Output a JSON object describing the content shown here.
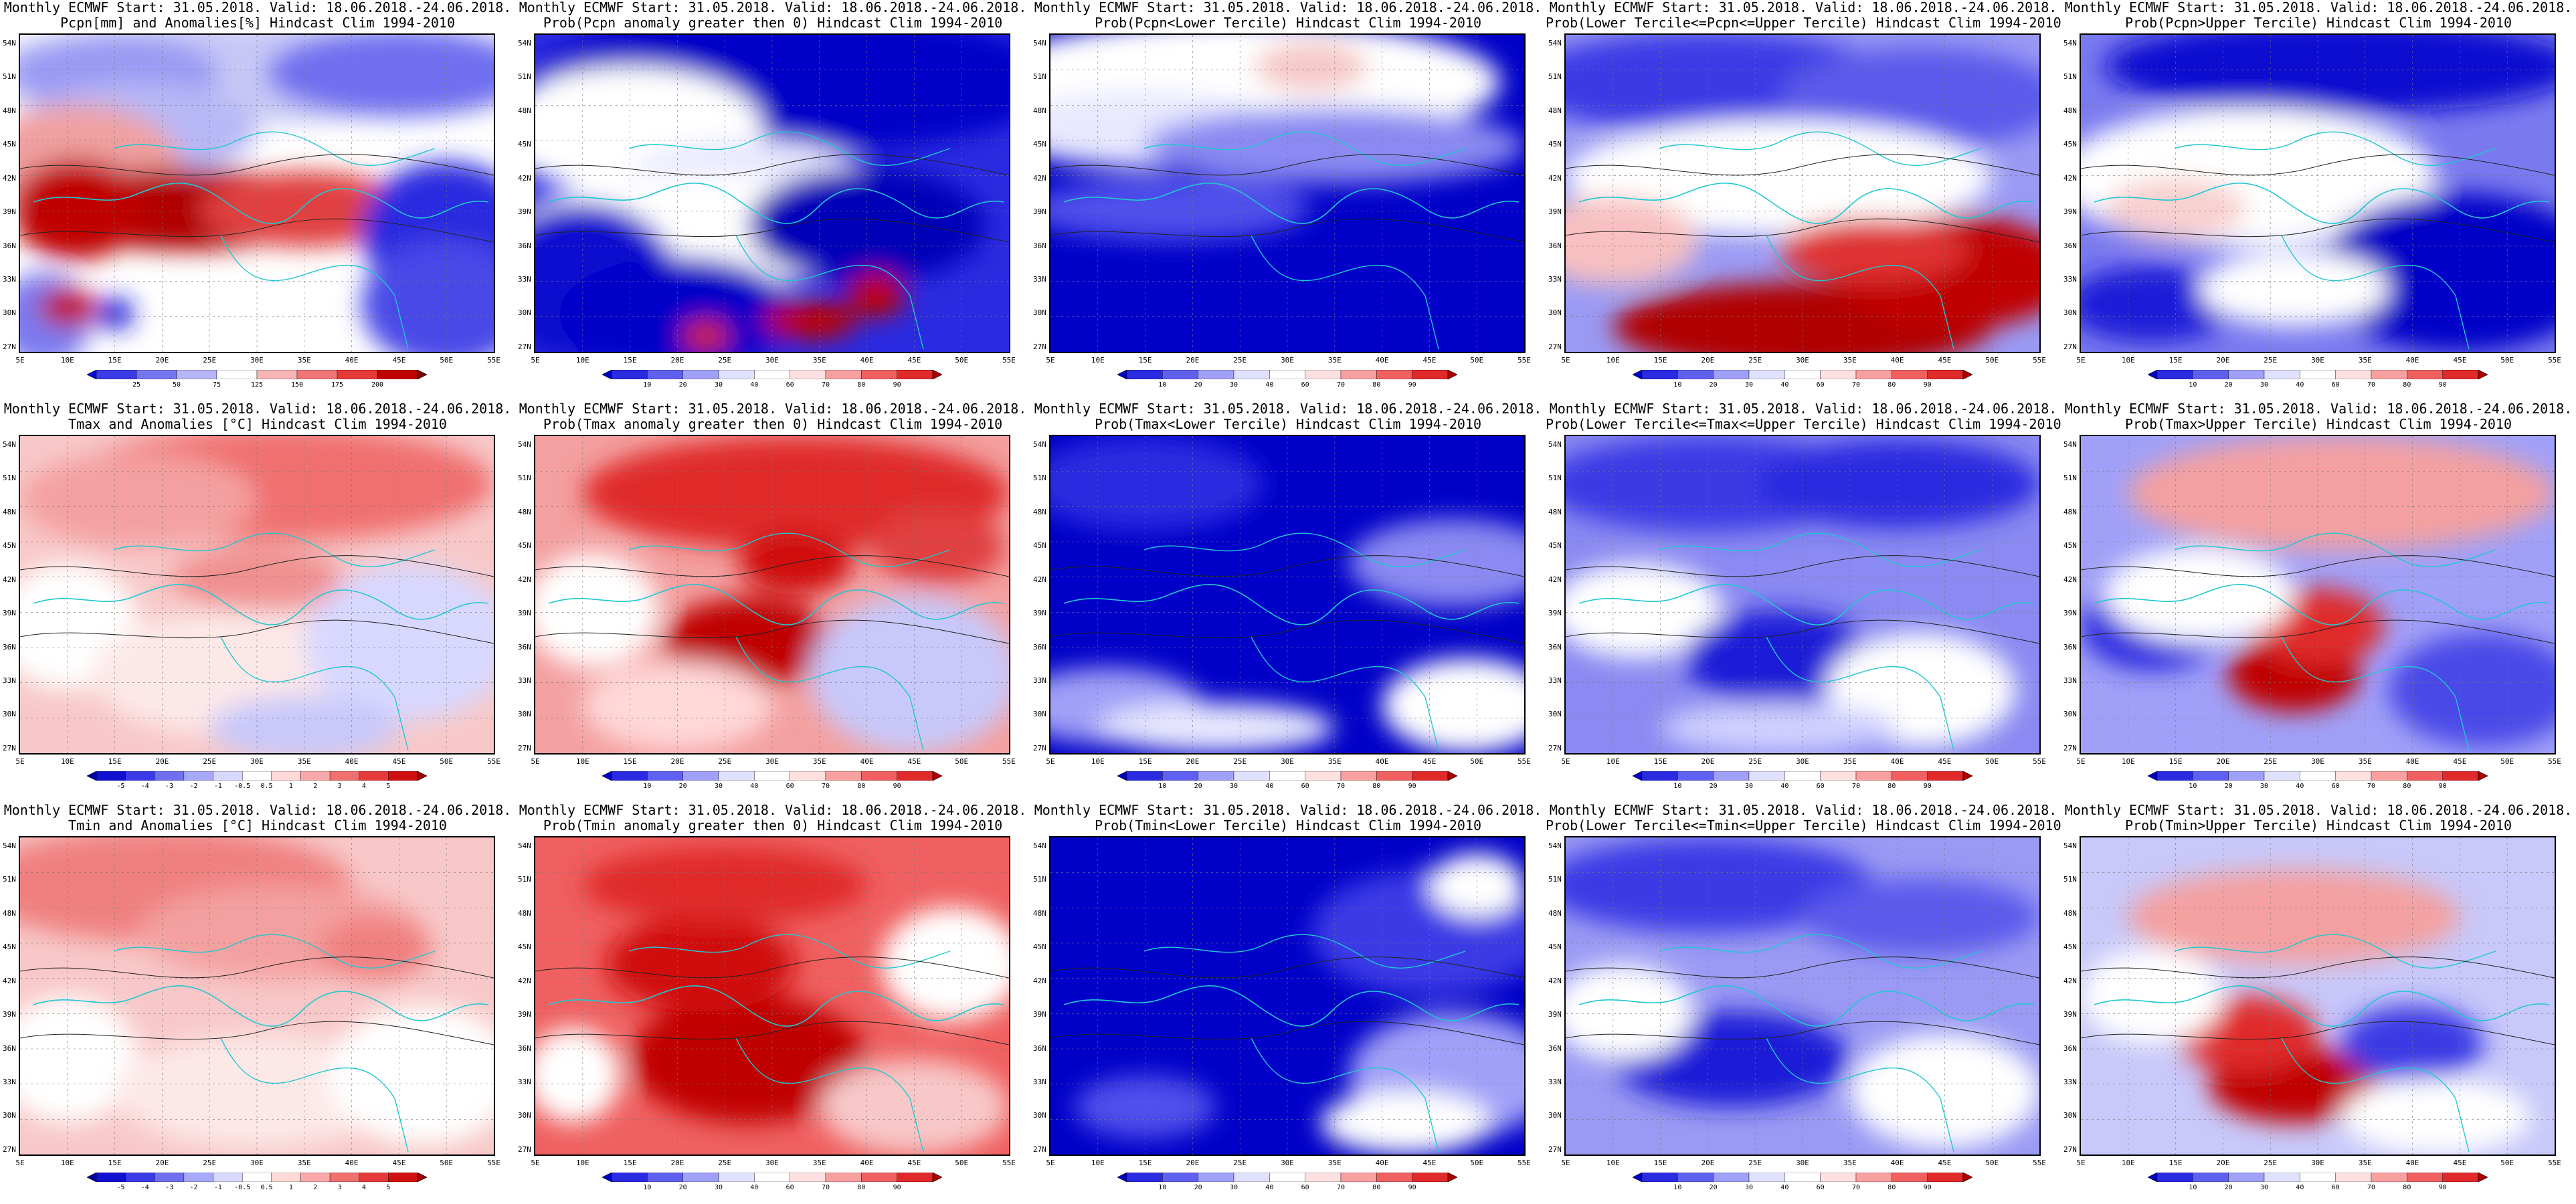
{
  "lat_labels": [
    "54N",
    "51N",
    "48N",
    "45N",
    "42N",
    "39N",
    "36N",
    "33N",
    "30N",
    "27N"
  ],
  "lon_labels": [
    "5E",
    "10E",
    "15E",
    "20E",
    "25E",
    "30E",
    "35E",
    "40E",
    "45E",
    "50E",
    "55E"
  ],
  "colorbars": {
    "pcpn_anom": {
      "ticks": [
        "25",
        "50",
        "75",
        "125",
        "150",
        "175",
        "200"
      ],
      "colors": [
        "#0b0bd0",
        "#3a3ae6",
        "#7575f0",
        "#b5b5f8",
        "#ffffff",
        "#f8b5b5",
        "#f07575",
        "#e63a3a",
        "#c00000",
        "#7a0000"
      ]
    },
    "prob": {
      "ticks": [
        "10",
        "20",
        "30",
        "40",
        "60",
        "70",
        "80",
        "90"
      ],
      "colors": [
        "#0000c8",
        "#2a2ae0",
        "#6060f0",
        "#a0a0f8",
        "#e0e0ff",
        "#ffffff",
        "#ffe0e0",
        "#f8a0a0",
        "#f06060",
        "#e02a2a",
        "#b00000"
      ]
    },
    "temp_anom": {
      "ticks": [
        "-5",
        "-4",
        "-3",
        "-2",
        "-1",
        "-0.5",
        "0.5",
        "1",
        "2",
        "3",
        "4",
        "5"
      ],
      "colors": [
        "#0000a0",
        "#1010d0",
        "#3a3ae6",
        "#6f6ff0",
        "#a8a8f8",
        "#d8d8ff",
        "#ffffff",
        "#ffd8d8",
        "#f8a8a8",
        "#f06f6f",
        "#e63a3a",
        "#d01010",
        "#a00000"
      ]
    }
  },
  "panels": [
    {
      "line1": "Monthly ECMWF Start: 31.05.2018. Valid: 18.06.2018.-24.06.2018.",
      "line2": "Pcpn[mm] and Anomalies[%] Hindcast Clim 1994-2010",
      "bar": "pcpn_anom",
      "base": "#ffffff",
      "blobs": [
        [
          "#c8c8f6",
          0.45,
          0.12,
          0.55,
          0.16
        ],
        [
          "#6f6ff0",
          0.8,
          0.12,
          0.28,
          0.14
        ],
        [
          "#9a9af4",
          0.2,
          0.12,
          0.22,
          0.12
        ],
        [
          "#b8b8f6",
          0.25,
          0.3,
          0.25,
          0.15
        ],
        [
          "#f0a0a0",
          0.12,
          0.42,
          0.22,
          0.2
        ],
        [
          "#b00000",
          0.35,
          0.55,
          0.3,
          0.13
        ],
        [
          "#c00000",
          0.12,
          0.55,
          0.14,
          0.16
        ],
        [
          "#e04040",
          0.6,
          0.55,
          0.22,
          0.12
        ],
        [
          "#2a2ae0",
          0.9,
          0.62,
          0.18,
          0.22
        ],
        [
          "#4a4ae8",
          0.9,
          0.85,
          0.18,
          0.2
        ],
        [
          "#7a7af0",
          0.05,
          0.9,
          0.1,
          0.15
        ],
        [
          "#c00000",
          0.1,
          0.86,
          0.06,
          0.06
        ],
        [
          "#1e1ed8",
          0.2,
          0.88,
          0.04,
          0.05
        ]
      ]
    },
    {
      "line1": "Monthly ECMWF Start: 31.05.2018. Valid: 18.06.2018.-24.06.2018.",
      "line2": "Prob(Pcpn anomaly greater then 0) Hindcast Clim 1994-2010",
      "bar": "prob",
      "base": "#2a2ae0",
      "blobs": [
        [
          "#0000c8",
          0.55,
          0.15,
          0.55,
          0.22
        ],
        [
          "#ffffff",
          0.2,
          0.3,
          0.28,
          0.2
        ],
        [
          "#e8e8ff",
          0.45,
          0.45,
          0.25,
          0.12
        ],
        [
          "#ffffff",
          0.35,
          0.62,
          0.4,
          0.18
        ],
        [
          "#0a0ad0",
          0.1,
          0.78,
          0.2,
          0.25
        ],
        [
          "#0000c8",
          0.3,
          0.88,
          0.25,
          0.18
        ],
        [
          "#0000b8",
          0.7,
          0.6,
          0.25,
          0.18
        ],
        [
          "#c00000",
          0.58,
          0.9,
          0.1,
          0.06
        ],
        [
          "#c00000",
          0.72,
          0.82,
          0.06,
          0.07
        ],
        [
          "#d02020",
          0.36,
          0.95,
          0.05,
          0.05
        ]
      ]
    },
    {
      "line1": "Monthly ECMWF Start: 31.05.2018. Valid: 18.06.2018.-24.06.2018.",
      "line2": "Prob(Pcpn<Lower Tercile) Hindcast Clim 1994-2010",
      "bar": "prob",
      "base": "#0000c8",
      "blobs": [
        [
          "#ffffff",
          0.4,
          0.15,
          0.55,
          0.2
        ],
        [
          "#f6c8c8",
          0.55,
          0.1,
          0.12,
          0.08
        ],
        [
          "#e8e8ff",
          0.2,
          0.3,
          0.3,
          0.12
        ],
        [
          "#8a8af2",
          0.6,
          0.35,
          0.4,
          0.12
        ],
        [
          "#5050ec",
          0.25,
          0.55,
          0.3,
          0.1
        ]
      ]
    },
    {
      "line1": "Monthly ECMWF Start: 31.05.2018. Valid: 18.06.2018.-24.06.2018.",
      "line2": "Prob(Lower Tercile<=Pcpn<=Upper Tercile) Hindcast Clim 1994-2010",
      "bar": "prob",
      "base": "#9a9af4",
      "blobs": [
        [
          "#3a3ae6",
          0.3,
          0.15,
          0.4,
          0.16
        ],
        [
          "#5a5aec",
          0.75,
          0.2,
          0.3,
          0.16
        ],
        [
          "#ffffff",
          0.45,
          0.45,
          0.45,
          0.18
        ],
        [
          "#f8c0c0",
          0.1,
          0.65,
          0.18,
          0.14
        ],
        [
          "#b00000",
          0.5,
          0.92,
          0.4,
          0.14
        ],
        [
          "#c00000",
          0.82,
          0.75,
          0.25,
          0.18
        ],
        [
          "#e03030",
          0.65,
          0.68,
          0.2,
          0.1
        ]
      ]
    },
    {
      "line1": "Monthly ECMWF Start: 31.05.2018. Valid: 18.06.2018.-24.06.2018.",
      "line2": "Prob(Pcpn>Upper Tercile) Hindcast Clim 1994-2010",
      "bar": "prob",
      "base": "#7a7af0",
      "blobs": [
        [
          "#0a0ad0",
          0.55,
          0.1,
          0.5,
          0.15
        ],
        [
          "#ffffff",
          0.35,
          0.45,
          0.4,
          0.22
        ],
        [
          "#f8d0d0",
          0.2,
          0.55,
          0.15,
          0.1
        ],
        [
          "#0000c8",
          0.8,
          0.75,
          0.3,
          0.25
        ],
        [
          "#1a1ad8",
          0.15,
          0.85,
          0.18,
          0.12
        ],
        [
          "#ffffff",
          0.45,
          0.8,
          0.2,
          0.12
        ]
      ]
    },
    {
      "line1": "Monthly ECMWF Start: 31.05.2018. Valid: 18.06.2018.-24.06.2018.",
      "line2": "Tmax and Anomalies [°C] Hindcast Clim 1994-2010",
      "bar": "temp_anom",
      "base": "#f8c8c8",
      "blobs": [
        [
          "#f07070",
          0.55,
          0.15,
          0.45,
          0.18
        ],
        [
          "#f4a0a0",
          0.25,
          0.2,
          0.25,
          0.15
        ],
        [
          "#ffffff",
          0.1,
          0.6,
          0.15,
          0.2
        ],
        [
          "#fde8e8",
          0.45,
          0.75,
          0.3,
          0.2
        ],
        [
          "#d8d8ff",
          0.82,
          0.65,
          0.22,
          0.25
        ],
        [
          "#c8c8fa",
          0.6,
          0.92,
          0.2,
          0.1
        ],
        [
          "#f09090",
          0.5,
          0.45,
          0.18,
          0.1
        ]
      ]
    },
    {
      "line1": "Monthly ECMWF Start: 31.05.2018. Valid: 18.06.2018.-24.06.2018.",
      "line2": "Prob(Tmax anomaly greater then 0) Hindcast Clim 1994-2010",
      "bar": "prob",
      "base": "#f4a0a0",
      "blobs": [
        [
          "#e02a2a",
          0.55,
          0.18,
          0.45,
          0.18
        ],
        [
          "#c00000",
          0.45,
          0.65,
          0.18,
          0.14
        ],
        [
          "#d01010",
          0.55,
          0.4,
          0.12,
          0.1
        ],
        [
          "#ffffff",
          0.12,
          0.55,
          0.14,
          0.18
        ],
        [
          "#c8c8fa",
          0.8,
          0.75,
          0.22,
          0.25
        ],
        [
          "#ffd8d8",
          0.3,
          0.85,
          0.2,
          0.14
        ],
        [
          "#e04040",
          0.85,
          0.35,
          0.14,
          0.12
        ]
      ]
    },
    {
      "line1": "Monthly ECMWF Start: 31.05.2018. Valid: 18.06.2018.-24.06.2018.",
      "line2": "Prob(Tmax<Lower Tercile) Hindcast Clim 1994-2010",
      "bar": "prob",
      "base": "#0000c8",
      "blobs": [
        [
          "#2a2ae0",
          0.2,
          0.15,
          0.25,
          0.15
        ],
        [
          "#8a8af2",
          0.85,
          0.4,
          0.22,
          0.14
        ],
        [
          "#a0a0f8",
          0.12,
          0.85,
          0.2,
          0.12
        ],
        [
          "#e8e8ff",
          0.35,
          0.92,
          0.25,
          0.08
        ],
        [
          "#ffffff",
          0.88,
          0.85,
          0.18,
          0.15
        ]
      ]
    },
    {
      "line1": "Monthly ECMWF Start: 31.05.2018. Valid: 18.06.2018.-24.06.2018.",
      "line2": "Prob(Lower Tercile<=Tmax<=Upper Tercile) Hindcast Clim 1994-2010",
      "bar": "prob",
      "base": "#8a8af2",
      "blobs": [
        [
          "#3a3ae6",
          0.3,
          0.15,
          0.35,
          0.15
        ],
        [
          "#2a2ae0",
          0.7,
          0.15,
          0.3,
          0.14
        ],
        [
          "#ffffff",
          0.15,
          0.55,
          0.18,
          0.15
        ],
        [
          "#1a1ad8",
          0.45,
          0.7,
          0.2,
          0.15
        ],
        [
          "#ffffff",
          0.75,
          0.8,
          0.2,
          0.18
        ],
        [
          "#d0d0ff",
          0.45,
          0.92,
          0.25,
          0.08
        ]
      ]
    },
    {
      "line1": "Monthly ECMWF Start: 31.05.2018. Valid: 18.06.2018.-24.06.2018.",
      "line2": "Prob(Tmax>Upper Tercile) Hindcast Clim 1994-2010",
      "bar": "prob",
      "base": "#a0a0f8",
      "blobs": [
        [
          "#f4a0a0",
          0.55,
          0.18,
          0.45,
          0.18
        ],
        [
          "#c00000",
          0.45,
          0.75,
          0.14,
          0.12
        ],
        [
          "#e02a2a",
          0.5,
          0.6,
          0.14,
          0.12
        ],
        [
          "#2a2ae0",
          0.15,
          0.6,
          0.15,
          0.14
        ],
        [
          "#ffffff",
          0.25,
          0.5,
          0.2,
          0.15
        ],
        [
          "#4a4ae8",
          0.85,
          0.8,
          0.2,
          0.18
        ]
      ]
    },
    {
      "line1": "Monthly ECMWF Start: 31.05.2018. Valid: 18.06.2018.-24.06.2018.",
      "line2": "Tmin and Anomalies [°C] Hindcast Clim 1994-2010",
      "bar": "temp_anom",
      "base": "#f8c8c8",
      "blobs": [
        [
          "#f08080",
          0.3,
          0.15,
          0.4,
          0.18
        ],
        [
          "#f4a0a0",
          0.55,
          0.3,
          0.3,
          0.15
        ],
        [
          "#ffffff",
          0.1,
          0.7,
          0.15,
          0.2
        ],
        [
          "#fde8e8",
          0.5,
          0.8,
          0.3,
          0.18
        ],
        [
          "#ffffff",
          0.85,
          0.75,
          0.2,
          0.22
        ],
        [
          "#f08080",
          0.75,
          0.35,
          0.12,
          0.1
        ]
      ]
    },
    {
      "line1": "Monthly ECMWF Start: 31.05.2018. Valid: 18.06.2018.-24.06.2018.",
      "line2": "Prob(Tmin anomaly greater then 0) Hindcast Clim 1994-2010",
      "bar": "prob",
      "base": "#f06060",
      "blobs": [
        [
          "#c00000",
          0.45,
          0.7,
          0.25,
          0.2
        ],
        [
          "#d01010",
          0.35,
          0.4,
          0.2,
          0.15
        ],
        [
          "#e02a2a",
          0.4,
          0.15,
          0.3,
          0.12
        ],
        [
          "#ffffff",
          0.88,
          0.4,
          0.15,
          0.18
        ],
        [
          "#f8c8c8",
          0.8,
          0.85,
          0.2,
          0.15
        ],
        [
          "#ffffff",
          0.08,
          0.75,
          0.1,
          0.15
        ]
      ]
    },
    {
      "line1": "Monthly ECMWF Start: 31.05.2018. Valid: 18.06.2018.-24.06.2018.",
      "line2": "Prob(Tmin<Lower Tercile) Hindcast Clim 1994-2010",
      "bar": "prob",
      "base": "#0000c8",
      "blobs": [
        [
          "#3a3ae6",
          0.8,
          0.3,
          0.25,
          0.2
        ],
        [
          "#a0a0f8",
          0.85,
          0.75,
          0.22,
          0.2
        ],
        [
          "#ffffff",
          0.75,
          0.9,
          0.18,
          0.1
        ],
        [
          "#5050ec",
          0.2,
          0.85,
          0.15,
          0.1
        ],
        [
          "#ffffff",
          0.9,
          0.15,
          0.1,
          0.1
        ]
      ]
    },
    {
      "line1": "Monthly ECMWF Start: 31.05.2018. Valid: 18.06.2018.-24.06.2018.",
      "line2": "Prob(Lower Tercile<=Tmin<=Upper Tercile) Hindcast Clim 1994-2010",
      "bar": "prob",
      "base": "#9a9af4",
      "blobs": [
        [
          "#3a3ae6",
          0.3,
          0.15,
          0.35,
          0.15
        ],
        [
          "#1a1ad8",
          0.35,
          0.7,
          0.25,
          0.15
        ],
        [
          "#ffffff",
          0.12,
          0.55,
          0.15,
          0.15
        ],
        [
          "#ffffff",
          0.8,
          0.8,
          0.2,
          0.18
        ],
        [
          "#5a5aec",
          0.75,
          0.25,
          0.25,
          0.12
        ]
      ]
    },
    {
      "line1": "Monthly ECMWF Start: 31.05.2018. Valid: 18.06.2018.-24.06.2018.",
      "line2": "Prob(Tmin>Upper Tercile) Hindcast Clim 1994-2010",
      "bar": "prob",
      "base": "#c8c8fa",
      "blobs": [
        [
          "#f4a0a0",
          0.45,
          0.25,
          0.35,
          0.15
        ],
        [
          "#c00000",
          0.45,
          0.78,
          0.18,
          0.12
        ],
        [
          "#e02a2a",
          0.35,
          0.62,
          0.15,
          0.12
        ],
        [
          "#ffffff",
          0.15,
          0.5,
          0.15,
          0.15
        ],
        [
          "#3a3ae6",
          0.7,
          0.65,
          0.15,
          0.12
        ],
        [
          "#ffffff",
          0.75,
          0.88,
          0.2,
          0.12
        ]
      ]
    }
  ]
}
